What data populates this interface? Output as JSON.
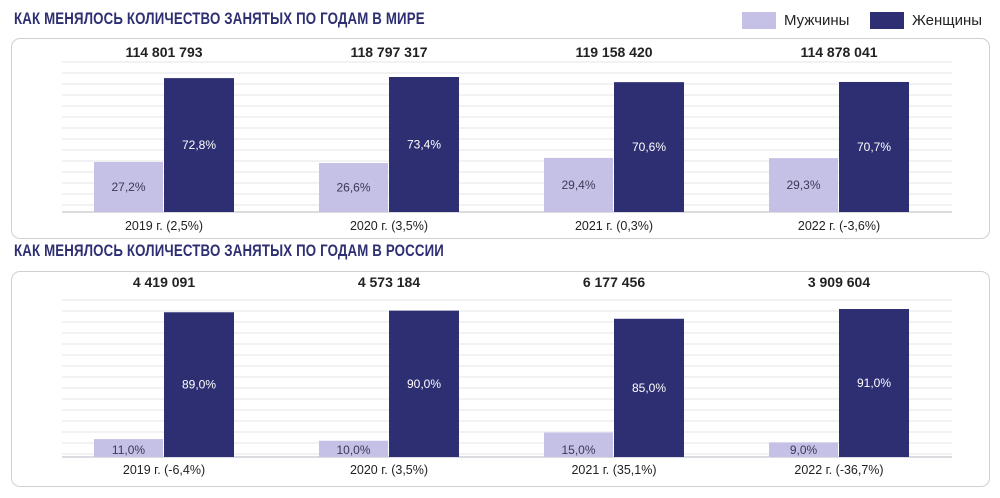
{
  "legend": {
    "men": "Мужчины",
    "women": "Женщины"
  },
  "colors": {
    "men": "#c4c0e6",
    "women": "#2e2f72",
    "grid": "#e4e4e9",
    "axis": "#b9b9c0"
  },
  "chart_data": [
    {
      "type": "bar",
      "title": "КАК МЕНЯЛОСЬ КОЛИЧЕСТВО ЗАНЯТЫХ ПО ГОДАМ В МИРЕ",
      "categories": [
        "2019 г. (2,5%)",
        "2020 г. (3,5%)",
        "2021 г. (0,3%)",
        "2022 г. (-3,6%)"
      ],
      "totals": [
        "114 801 793",
        "118 797 317",
        "119 158 420",
        "114 878 041"
      ],
      "series": [
        {
          "name": "Мужчины",
          "values": [
            27.2,
            26.6,
            29.4,
            29.3
          ],
          "labels": [
            "27,2%",
            "26,6%",
            "29,4%",
            "29,3%"
          ]
        },
        {
          "name": "Женщины",
          "values": [
            72.8,
            73.4,
            70.6,
            70.7
          ],
          "labels": [
            "72,8%",
            "73,4%",
            "70,6%",
            "70,7%"
          ]
        }
      ],
      "ylim": [
        0,
        73.4
      ]
    },
    {
      "type": "bar",
      "title": "КАК МЕНЯЛОСЬ КОЛИЧЕСТВО ЗАНЯТЫХ ПО ГОДАМ В РОССИИ",
      "categories": [
        "2019 г. (-6,4%)",
        "2020 г. (3,5%)",
        "2021 г. (35,1%)",
        "2022 г. (-36,7%)"
      ],
      "totals": [
        "4 419 091",
        "4 573 184",
        "6 177 456",
        "3 909 604"
      ],
      "series": [
        {
          "name": "Мужчины",
          "values": [
            11.0,
            10.0,
            15.0,
            9.0
          ],
          "labels": [
            "11,0%",
            "10,0%",
            "15,0%",
            "9,0%"
          ]
        },
        {
          "name": "Женщины",
          "values": [
            89.0,
            90.0,
            85.0,
            91.0
          ],
          "labels": [
            "89,0%",
            "90,0%",
            "85,0%",
            "91,0%"
          ]
        }
      ],
      "ylim": [
        0,
        91
      ]
    }
  ]
}
